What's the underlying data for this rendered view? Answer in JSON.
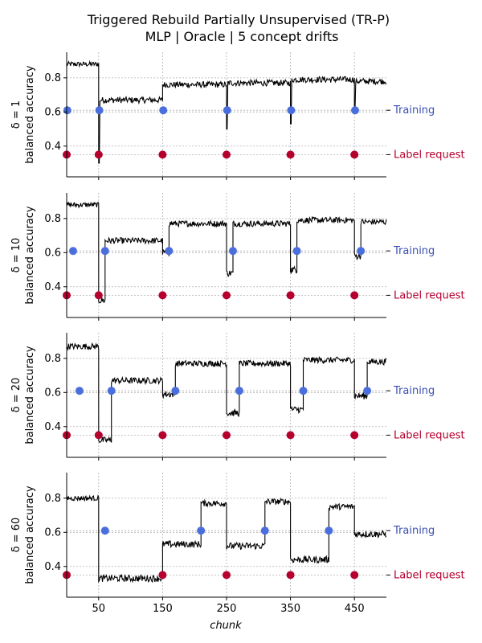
{
  "title_line1": "Triggered Rebuild Partially Unsupervised (TR-P)",
  "title_line2": "MLP | Oracle | 5 concept drifts",
  "colors": {
    "training": "#4a6fdc",
    "training_text": "#3a4fb5",
    "label_request": "#b5002e",
    "line": "#000000",
    "grid": "#b0b0b0"
  },
  "chart_data": {
    "type": "line",
    "xlabel": "chunk",
    "xlim": [
      0,
      500
    ],
    "ylim": [
      0.22,
      0.95
    ],
    "xticks": [
      50,
      150,
      250,
      350,
      450
    ],
    "yticks": [
      0.4,
      0.6,
      0.8
    ],
    "legend_side_labels": {
      "training": "Training",
      "label_request": "Label request"
    },
    "marker_levels": {
      "training": 0.61,
      "label_request": 0.35
    },
    "panels": [
      {
        "ylabel": "δ = 1",
        "ylabel2": "balanced accuracy",
        "label_request_chunks": [
          0,
          50,
          150,
          250,
          350,
          450
        ],
        "training_chunks": [
          1,
          51,
          151,
          251,
          351,
          451
        ],
        "series": [
          {
            "start": 0,
            "end": 50,
            "level": 0.88,
            "noise": 0.015
          },
          {
            "start": 50,
            "end": 150,
            "level": 0.67,
            "noise": 0.018,
            "dip": [
              50,
              51,
              0.3
            ]
          },
          {
            "start": 150,
            "end": 250,
            "level": 0.76,
            "noise": 0.018
          },
          {
            "start": 250,
            "end": 350,
            "level": 0.77,
            "noise": 0.018,
            "dip": [
              250,
              251,
              0.5
            ]
          },
          {
            "start": 350,
            "end": 450,
            "level": 0.79,
            "noise": 0.018,
            "dip": [
              350,
              351,
              0.53
            ]
          },
          {
            "start": 450,
            "end": 500,
            "level": 0.78,
            "noise": 0.018,
            "dip": [
              450,
              451,
              0.62
            ]
          }
        ]
      },
      {
        "ylabel": "δ = 10",
        "ylabel2": "balanced accuracy",
        "label_request_chunks": [
          0,
          50,
          150,
          250,
          350,
          450
        ],
        "training_chunks": [
          10,
          60,
          160,
          260,
          360,
          460
        ],
        "series": [
          {
            "start": 0,
            "end": 50,
            "level": 0.88,
            "noise": 0.015
          },
          {
            "start": 50,
            "end": 60,
            "level": 0.32,
            "noise": 0.02
          },
          {
            "start": 60,
            "end": 150,
            "level": 0.67,
            "noise": 0.018
          },
          {
            "start": 150,
            "end": 160,
            "level": 0.6,
            "noise": 0.02
          },
          {
            "start": 160,
            "end": 250,
            "level": 0.77,
            "noise": 0.018
          },
          {
            "start": 250,
            "end": 260,
            "level": 0.48,
            "noise": 0.02
          },
          {
            "start": 260,
            "end": 350,
            "level": 0.77,
            "noise": 0.018
          },
          {
            "start": 350,
            "end": 360,
            "level": 0.5,
            "noise": 0.02
          },
          {
            "start": 360,
            "end": 450,
            "level": 0.79,
            "noise": 0.018
          },
          {
            "start": 450,
            "end": 460,
            "level": 0.58,
            "noise": 0.02
          },
          {
            "start": 460,
            "end": 500,
            "level": 0.78,
            "noise": 0.018
          }
        ]
      },
      {
        "ylabel": "δ = 20",
        "ylabel2": "balanced accuracy",
        "label_request_chunks": [
          0,
          50,
          150,
          250,
          350,
          450
        ],
        "training_chunks": [
          20,
          70,
          170,
          270,
          370,
          470
        ],
        "series": [
          {
            "start": 0,
            "end": 50,
            "level": 0.87,
            "noise": 0.018
          },
          {
            "start": 50,
            "end": 70,
            "level": 0.32,
            "noise": 0.02
          },
          {
            "start": 70,
            "end": 150,
            "level": 0.67,
            "noise": 0.018
          },
          {
            "start": 150,
            "end": 170,
            "level": 0.59,
            "noise": 0.02
          },
          {
            "start": 170,
            "end": 250,
            "level": 0.77,
            "noise": 0.018
          },
          {
            "start": 250,
            "end": 270,
            "level": 0.48,
            "noise": 0.02
          },
          {
            "start": 270,
            "end": 350,
            "level": 0.77,
            "noise": 0.018
          },
          {
            "start": 350,
            "end": 370,
            "level": 0.5,
            "noise": 0.02
          },
          {
            "start": 370,
            "end": 450,
            "level": 0.79,
            "noise": 0.018
          },
          {
            "start": 450,
            "end": 470,
            "level": 0.58,
            "noise": 0.02
          },
          {
            "start": 470,
            "end": 500,
            "level": 0.78,
            "noise": 0.018
          }
        ]
      },
      {
        "ylabel": "δ = 60",
        "ylabel2": "balanced accuracy",
        "label_request_chunks": [
          0,
          150,
          250,
          350,
          450
        ],
        "training_chunks": [
          60,
          210,
          310,
          410
        ],
        "series": [
          {
            "start": 0,
            "end": 50,
            "level": 0.8,
            "noise": 0.015
          },
          {
            "start": 50,
            "end": 150,
            "level": 0.33,
            "noise": 0.02
          },
          {
            "start": 150,
            "end": 210,
            "level": 0.53,
            "noise": 0.02
          },
          {
            "start": 210,
            "end": 250,
            "level": 0.77,
            "noise": 0.018
          },
          {
            "start": 250,
            "end": 310,
            "level": 0.52,
            "noise": 0.02
          },
          {
            "start": 310,
            "end": 350,
            "level": 0.78,
            "noise": 0.018
          },
          {
            "start": 350,
            "end": 410,
            "level": 0.44,
            "noise": 0.02
          },
          {
            "start": 410,
            "end": 450,
            "level": 0.75,
            "noise": 0.018
          },
          {
            "start": 450,
            "end": 500,
            "level": 0.59,
            "noise": 0.02
          }
        ]
      }
    ]
  }
}
